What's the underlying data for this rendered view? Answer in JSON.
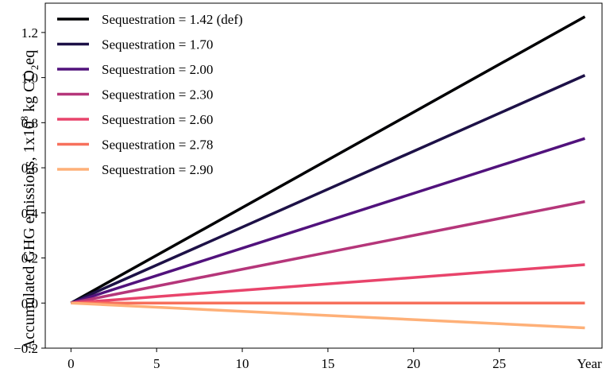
{
  "chart_data": {
    "type": "line",
    "xlabel": "Year",
    "ylabel": {
      "prefix": "Accumulated GHG emissions, 1x10",
      "exponent": "8",
      "suffix": " kg CO",
      "subscript": "2",
      "tail": "eq"
    },
    "xlim": [
      -1.5,
      31
    ],
    "ylim": [
      -0.2,
      1.33
    ],
    "xticks": [
      0,
      5,
      10,
      15,
      20,
      25
    ],
    "xtick_labels": [
      "0",
      "5",
      "10",
      "15",
      "20",
      "25"
    ],
    "yticks": [
      -0.2,
      0.0,
      0.2,
      0.4,
      0.6,
      0.8,
      1.0,
      1.2
    ],
    "ytick_labels": [
      "−0.2",
      "0.0",
      "0.2",
      "0.4",
      "0.6",
      "0.8",
      "1.0",
      "1.2"
    ],
    "grid": false,
    "legend_position": "top-left",
    "x": [
      0,
      30
    ],
    "series": [
      {
        "name": "Sequestration = 1.42 (def)",
        "color": "#000004",
        "values": [
          0,
          1.27
        ]
      },
      {
        "name": "Sequestration = 1.70",
        "color": "#1d1147",
        "values": [
          0,
          1.01
        ]
      },
      {
        "name": "Sequestration = 2.00",
        "color": "#51127c",
        "values": [
          0,
          0.73
        ]
      },
      {
        "name": "Sequestration = 2.30",
        "color": "#b5367a",
        "values": [
          0,
          0.45
        ]
      },
      {
        "name": "Sequestration = 2.60",
        "color": "#e8446b",
        "values": [
          0,
          0.17
        ]
      },
      {
        "name": "Sequestration = 2.78",
        "color": "#f7705c",
        "values": [
          0,
          0.0
        ]
      },
      {
        "name": "Sequestration = 2.90",
        "color": "#feb078",
        "values": [
          0,
          -0.11
        ]
      }
    ]
  }
}
